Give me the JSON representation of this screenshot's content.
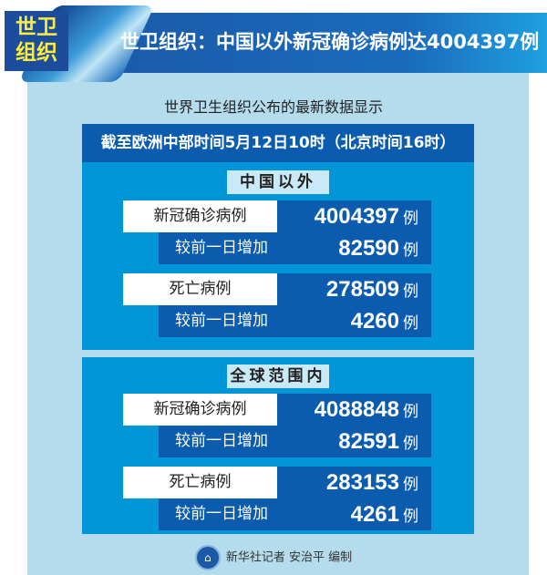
{
  "header": {
    "badge_line1": "世卫",
    "badge_line2": "组织",
    "title": "世卫组织：中国以外新冠确诊病例达4004397例"
  },
  "subtitle": "世界卫生组织公布的最新数据显示",
  "date_line": "截至欧洲中部时间5月12日10时（北京时间16时）",
  "unit": "例",
  "sections": [
    {
      "title": "中国以外",
      "rows": [
        {
          "label": "新冠确诊病例",
          "value": "4004397"
        },
        {
          "label": "较前一日增加",
          "value": "82590"
        },
        {
          "label": "死亡病例",
          "value": "278509"
        },
        {
          "label": "较前一日增加",
          "value": "4260"
        }
      ]
    },
    {
      "title": "全球范围内",
      "rows": [
        {
          "label": "新冠确诊病例",
          "value": "4088848"
        },
        {
          "label": "较前一日增加",
          "value": "82591"
        },
        {
          "label": "死亡病例",
          "value": "283153"
        },
        {
          "label": "较前一日增加",
          "value": "4261"
        }
      ]
    }
  ],
  "footer": {
    "credit": "新华社记者 安治平 编制",
    "logo_icon": "xinhua-logo"
  },
  "colors": {
    "dark_blue": "#0b5cae",
    "section_blue": "#0096d8",
    "panel": "#b4dcec",
    "badge_text": "#ffec3a"
  }
}
